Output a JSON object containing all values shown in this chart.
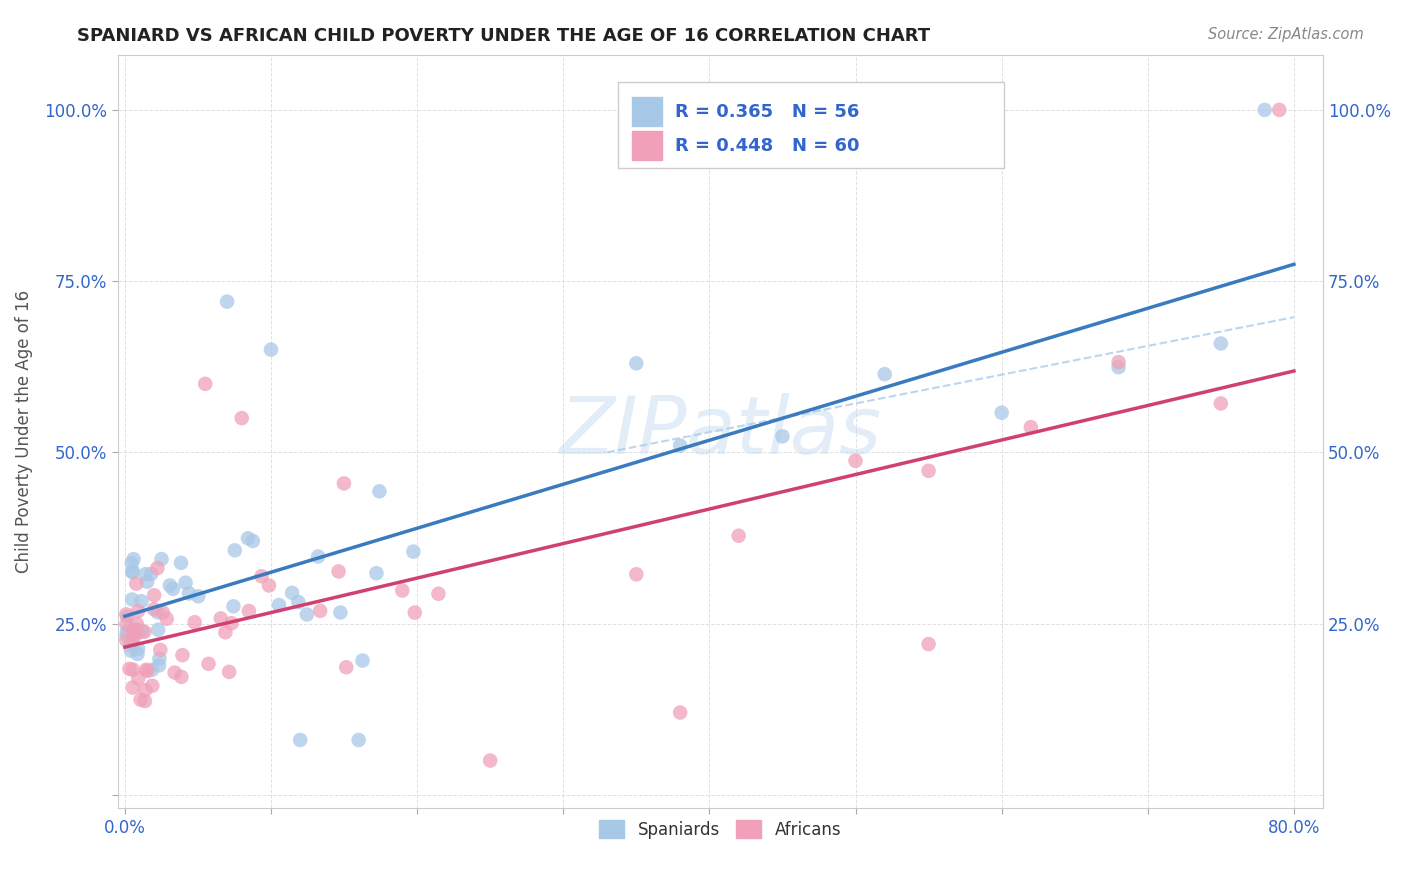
{
  "title": "SPANIARD VS AFRICAN CHILD POVERTY UNDER THE AGE OF 16 CORRELATION CHART",
  "source": "Source: ZipAtlas.com",
  "ylabel": "Child Poverty Under the Age of 16",
  "legend_R1": "R = 0.365",
  "legend_N1": "N = 56",
  "legend_R2": "R = 0.448",
  "legend_N2": "N = 60",
  "legend_label1": "Spaniards",
  "legend_label2": "Africans",
  "spaniard_color": "#a8c8e8",
  "african_color": "#f0a0b8",
  "spaniard_line_color": "#3a7abf",
  "african_line_color": "#d04070",
  "dashed_line_color": "#a8c8e8",
  "watermark": "ZIPatlas",
  "background_color": "#ffffff",
  "text_color": "#3366cc",
  "title_color": "#222222",
  "source_color": "#888888",
  "grid_color": "#dddddd",
  "ytick_color": "#3366cc",
  "xtick_color": "#3366cc"
}
